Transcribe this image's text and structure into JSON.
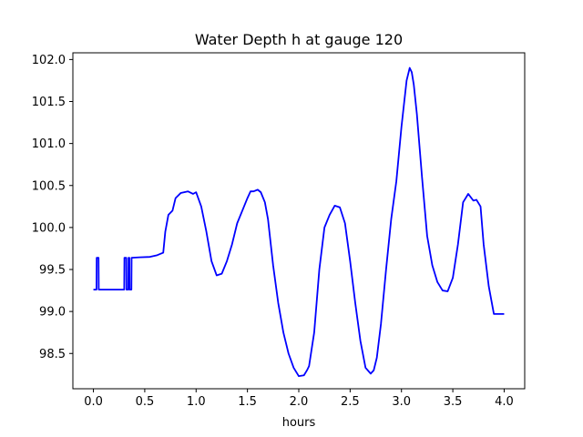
{
  "chart_data": {
    "type": "line",
    "title": "Water Depth h at gauge 120",
    "xlabel": "hours",
    "ylabel": "",
    "xlim": [
      -0.2,
      4.2
    ],
    "ylim": [
      98.08,
      102.08
    ],
    "xticks": [
      0.0,
      0.5,
      1.0,
      1.5,
      2.0,
      2.5,
      3.0,
      3.5,
      4.0
    ],
    "xtick_labels": [
      "0.0",
      "0.5",
      "1.0",
      "1.5",
      "2.0",
      "2.5",
      "3.0",
      "3.5",
      "4.0"
    ],
    "yticks": [
      98.5,
      99.0,
      99.5,
      100.0,
      100.5,
      101.0,
      101.5,
      102.0
    ],
    "ytick_labels": [
      "98.5",
      "99.0",
      "99.5",
      "100.0",
      "100.5",
      "101.0",
      "101.5",
      "102.0"
    ],
    "grid": false,
    "series": [
      {
        "color": "#0000ff",
        "x": [
          0.0,
          0.03,
          0.032,
          0.05,
          0.052,
          0.3,
          0.302,
          0.32,
          0.322,
          0.34,
          0.342,
          0.35,
          0.352,
          0.37,
          0.372,
          0.45,
          0.55,
          0.62,
          0.68,
          0.7,
          0.73,
          0.77,
          0.8,
          0.85,
          0.92,
          0.97,
          1.0,
          1.05,
          1.1,
          1.15,
          1.2,
          1.25,
          1.3,
          1.35,
          1.4,
          1.45,
          1.5,
          1.53,
          1.56,
          1.6,
          1.63,
          1.67,
          1.7,
          1.75,
          1.8,
          1.85,
          1.9,
          1.95,
          2.0,
          2.05,
          2.08,
          2.1,
          2.15,
          2.2,
          2.25,
          2.3,
          2.35,
          2.4,
          2.45,
          2.5,
          2.55,
          2.6,
          2.65,
          2.7,
          2.73,
          2.76,
          2.8,
          2.85,
          2.9,
          2.95,
          3.0,
          3.05,
          3.08,
          3.1,
          3.12,
          3.15,
          3.2,
          3.25,
          3.3,
          3.35,
          3.4,
          3.45,
          3.5,
          3.55,
          3.6,
          3.65,
          3.7,
          3.73,
          3.77,
          3.8,
          3.85,
          3.9,
          3.95,
          4.0
        ],
        "y": [
          99.26,
          99.26,
          99.64,
          99.64,
          99.26,
          99.26,
          99.64,
          99.64,
          99.26,
          99.26,
          99.64,
          99.64,
          99.26,
          99.26,
          99.64,
          99.645,
          99.65,
          99.67,
          99.7,
          99.95,
          100.15,
          100.2,
          100.35,
          100.41,
          100.43,
          100.4,
          100.42,
          100.25,
          99.95,
          99.6,
          99.43,
          99.45,
          99.6,
          99.8,
          100.05,
          100.2,
          100.35,
          100.43,
          100.43,
          100.45,
          100.42,
          100.3,
          100.1,
          99.55,
          99.1,
          98.75,
          98.5,
          98.33,
          98.23,
          98.24,
          98.3,
          98.35,
          98.75,
          99.5,
          100.0,
          100.15,
          100.26,
          100.24,
          100.05,
          99.6,
          99.1,
          98.65,
          98.33,
          98.26,
          98.3,
          98.45,
          98.85,
          99.5,
          100.1,
          100.55,
          101.2,
          101.75,
          101.9,
          101.85,
          101.7,
          101.35,
          100.6,
          99.9,
          99.55,
          99.35,
          99.25,
          99.24,
          99.4,
          99.8,
          100.3,
          100.4,
          100.32,
          100.33,
          100.25,
          99.8,
          99.3,
          98.97,
          98.97,
          98.97
        ]
      }
    ]
  }
}
